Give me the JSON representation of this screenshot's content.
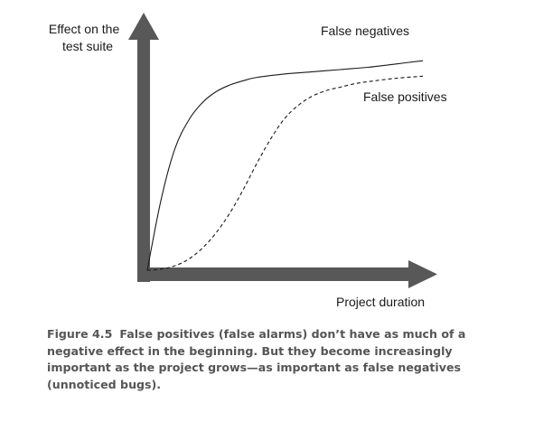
{
  "chart_data": {
    "type": "line",
    "ylabel": [
      "Effect on the",
      "test suite"
    ],
    "xlabel": "Project duration",
    "x_ticks": [],
    "y_ticks": [],
    "grid": false,
    "series": [
      {
        "name": "False negatives",
        "style": "solid",
        "color": "#1a1a1a",
        "shape": "rapid-rise-then-plateau",
        "x": [
          0,
          0.05,
          0.1,
          0.15,
          0.2,
          0.25,
          0.3,
          0.35,
          0.4,
          0.5,
          0.6,
          0.7,
          0.8,
          0.9,
          1.0
        ],
        "y": [
          0,
          0.32,
          0.55,
          0.68,
          0.76,
          0.81,
          0.84,
          0.86,
          0.875,
          0.89,
          0.9,
          0.91,
          0.92,
          0.935,
          0.95
        ]
      },
      {
        "name": "False positives",
        "style": "dashed",
        "color": "#1a1a1a",
        "shape": "slow-start-s-curve",
        "x": [
          0,
          0.05,
          0.1,
          0.15,
          0.2,
          0.25,
          0.3,
          0.35,
          0.4,
          0.45,
          0.5,
          0.55,
          0.6,
          0.65,
          0.7,
          0.75,
          0.8,
          0.9,
          1.0
        ],
        "y": [
          0,
          0.005,
          0.02,
          0.05,
          0.1,
          0.17,
          0.26,
          0.37,
          0.49,
          0.6,
          0.69,
          0.75,
          0.79,
          0.815,
          0.83,
          0.845,
          0.855,
          0.87,
          0.88
        ]
      }
    ]
  },
  "caption": {
    "number": "Figure 4.5",
    "text": "False positives (false alarms) don’t have as much of a negative effect in the beginning. But they become increasingly important as the project grows—as important as false negatives (unnoticed bugs)."
  },
  "colors": {
    "axis": "#585858",
    "caption": "#555555"
  }
}
